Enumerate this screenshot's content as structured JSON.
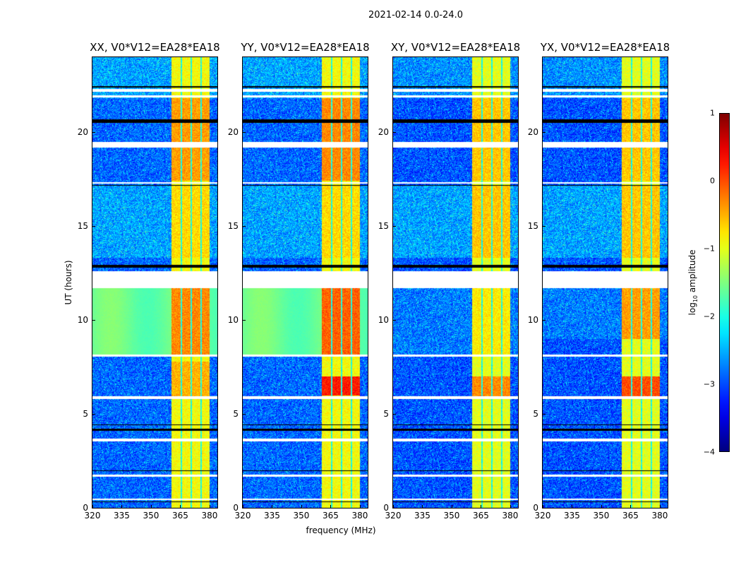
{
  "suptitle": "2021-02-14 0.0-24.0",
  "chart_data": {
    "type": "heatmap",
    "title": "2021-02-14 0.0-24.0",
    "xlabel": "frequency (MHz)",
    "ylabel": "UT (hours)",
    "xlim": [
      320,
      384
    ],
    "ylim": [
      0,
      24
    ],
    "xticks": [
      "320",
      "335",
      "350",
      "365",
      "380"
    ],
    "xtick_values": [
      320,
      335,
      350,
      365,
      380
    ],
    "yticks": [
      "0",
      "5",
      "10",
      "15",
      "20"
    ],
    "ytick_values": [
      0,
      5,
      10,
      15,
      20
    ],
    "colorbar": {
      "label": "log10 amplitude",
      "label_main": "log",
      "label_sub": "10",
      "label_rest": " amplitude",
      "colormap": "jet",
      "range": [
        -4,
        1
      ],
      "ticks": [
        "1",
        "0",
        "−1",
        "−2",
        "−3",
        "−4"
      ],
      "tick_values": [
        1,
        0,
        -1,
        -2,
        -3,
        -4
      ]
    },
    "rfi_band_mhz": [
      360.5,
      380.2
    ],
    "rfi_gap_channels_mhz": [
      365.6,
      370.6,
      375.6
    ],
    "flagged_hours": [
      [
        22.15,
        22.3
      ],
      [
        21.85,
        21.95
      ],
      [
        19.2,
        19.5
      ],
      [
        17.25,
        17.35
      ],
      [
        11.7,
        12.6
      ],
      [
        8.05,
        8.15
      ],
      [
        5.8,
        5.95
      ],
      [
        3.55,
        3.7
      ],
      [
        1.65,
        1.75
      ],
      [
        0.4,
        0.5
      ]
    ],
    "dark_hours": [
      [
        20.5,
        20.7
      ],
      [
        12.8,
        12.95
      ],
      [
        4.1,
        4.2
      ],
      [
        4.4,
        4.45
      ],
      [
        1.95,
        2.0
      ],
      [
        0.3,
        0.35
      ],
      [
        17.15,
        17.2
      ],
      [
        22.4,
        22.45
      ]
    ],
    "panels": [
      {
        "title": "XX, V0*V12=EA28*EA18",
        "base": -2.9,
        "rfi": -0.9,
        "segments": [
          {
            "t": [
              8.15,
              11.7
            ],
            "base": -1.6,
            "rfi": -0.3
          },
          {
            "t": [
              5.95,
              7.8
            ],
            "base": -2.9,
            "rfi": -0.5
          },
          {
            "t": [
              17.4,
              21.8
            ],
            "base": -2.9,
            "rfi": -0.4
          },
          {
            "t": [
              13.3,
              17.2
            ],
            "base": -2.6,
            "rfi": -0.7
          }
        ]
      },
      {
        "title": "YY, V0*V12=EA28*EA18",
        "base": -2.9,
        "rfi": -0.9,
        "segments": [
          {
            "t": [
              8.15,
              11.7
            ],
            "base": -1.6,
            "rfi": -0.1
          },
          {
            "t": [
              6.0,
              7.0
            ],
            "base": -2.9,
            "rfi": 0.25
          },
          {
            "t": [
              14.5,
              15.3
            ],
            "base": -2.5,
            "rfi": 0.1
          },
          {
            "t": [
              17.4,
              21.8
            ],
            "base": -2.9,
            "rfi": -0.3
          },
          {
            "t": [
              13.3,
              17.2
            ],
            "base": -2.6,
            "rfi": -0.7
          }
        ]
      },
      {
        "title": "XY, V0*V12=EA28*EA18",
        "base": -3.0,
        "rfi": -1.0,
        "segments": [
          {
            "t": [
              5.95,
              7.0
            ],
            "base": -3.0,
            "rfi": -0.3
          },
          {
            "t": [
              8.15,
              11.7
            ],
            "base": -2.8,
            "rfi": -0.8
          },
          {
            "t": [
              13.3,
              17.2
            ],
            "base": -2.6,
            "rfi": -0.6
          },
          {
            "t": [
              17.4,
              21.8
            ],
            "base": -3.0,
            "rfi": -0.6
          }
        ]
      },
      {
        "title": "YX, V0*V12=EA28*EA18",
        "base": -3.0,
        "rfi": -1.0,
        "segments": [
          {
            "t": [
              5.95,
              7.0
            ],
            "base": -3.0,
            "rfi": 0.0
          },
          {
            "t": [
              9.0,
              11.7
            ],
            "base": -2.8,
            "rfi": -0.4
          },
          {
            "t": [
              13.3,
              17.2
            ],
            "base": -2.6,
            "rfi": -0.6
          },
          {
            "t": [
              17.4,
              21.8
            ],
            "base": -3.0,
            "rfi": -0.6
          }
        ]
      }
    ]
  }
}
